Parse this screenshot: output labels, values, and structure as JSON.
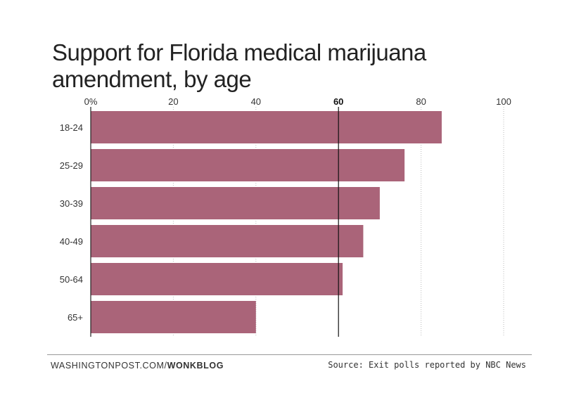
{
  "chart_data": {
    "type": "bar",
    "orientation": "horizontal",
    "title": "Support for Florida medical marijuana amendment, by age",
    "categories": [
      "18-24",
      "25-29",
      "30-39",
      "40-49",
      "50-64",
      "65+"
    ],
    "values": [
      85,
      76,
      70,
      66,
      61,
      40
    ],
    "xlim": [
      0,
      100
    ],
    "xticks": [
      {
        "value": 0,
        "label": "0%"
      },
      {
        "value": 20,
        "label": "20"
      },
      {
        "value": 40,
        "label": "40"
      },
      {
        "value": 60,
        "label": "60",
        "emphasis": true
      },
      {
        "value": 80,
        "label": "80"
      },
      {
        "value": 100,
        "label": "100"
      }
    ],
    "reference_line": 60,
    "grid": true,
    "bar_color": "#aa6479"
  },
  "footer": {
    "source_prefix": "WASHINGTONPOST.COM/",
    "source_bold": "WONKBLOG",
    "source_note": "Source: Exit polls reported by NBC News"
  }
}
